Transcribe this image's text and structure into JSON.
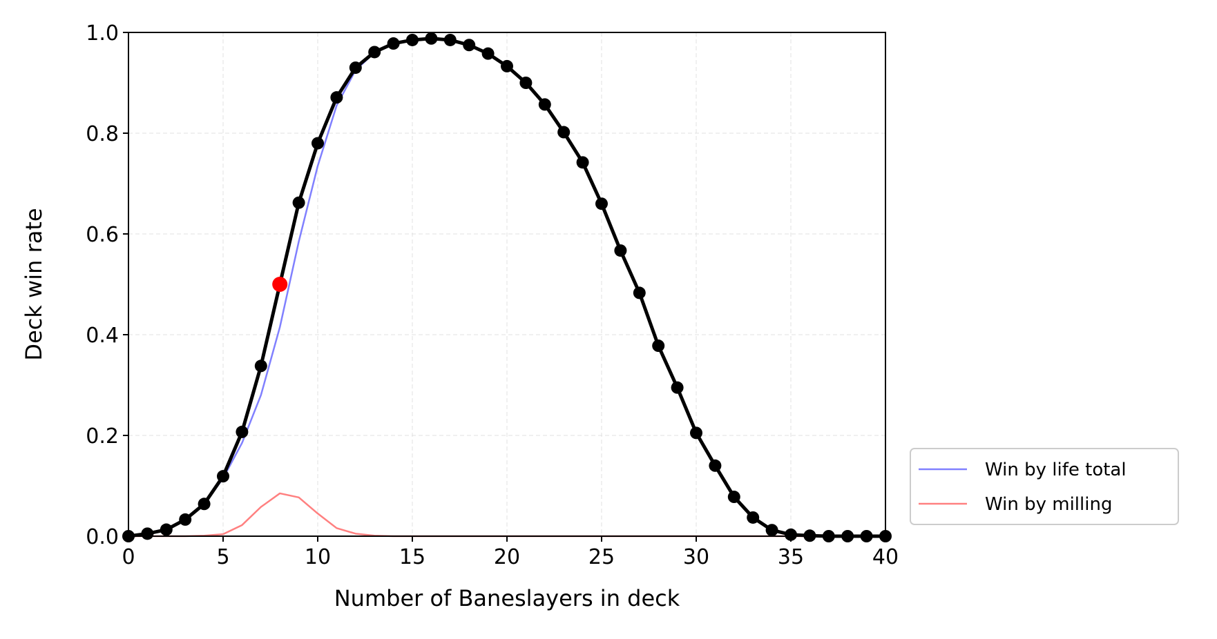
{
  "chart_data": {
    "type": "line",
    "title": "",
    "xlabel": "Number of Baneslayers in deck",
    "ylabel": "Deck win rate",
    "xlim": [
      0,
      40
    ],
    "ylim": [
      0,
      1
    ],
    "xticks": [
      "0",
      "5",
      "10",
      "15",
      "20",
      "25",
      "30",
      "35",
      "40"
    ],
    "yticks": [
      "0.0",
      "0.2",
      "0.4",
      "0.6",
      "0.8",
      "1.0"
    ],
    "grid": true,
    "legend_position": "outside-lower-right",
    "series": [
      {
        "name": "Win by life total",
        "color": "#8080ff",
        "x": [
          0,
          1,
          2,
          3,
          4,
          5,
          6,
          7,
          8,
          9,
          10,
          11,
          12,
          13,
          14,
          15,
          16,
          17,
          18,
          19,
          20,
          21,
          22,
          23,
          24,
          25,
          26,
          27,
          28,
          29,
          30,
          31,
          32,
          33,
          34,
          35,
          36,
          37,
          38,
          39,
          40
        ],
        "y": [
          0.0,
          0.005,
          0.013,
          0.033,
          0.063,
          0.115,
          0.185,
          0.28,
          0.415,
          0.585,
          0.735,
          0.855,
          0.925,
          0.96,
          0.978,
          0.985,
          0.988,
          0.985,
          0.975,
          0.958,
          0.933,
          0.9,
          0.857,
          0.802,
          0.742,
          0.66,
          0.567,
          0.483,
          0.378,
          0.295,
          0.205,
          0.14,
          0.078,
          0.037,
          0.012,
          0.003,
          0.001,
          0.0,
          0.0,
          0.0,
          0.0
        ]
      },
      {
        "name": "Win by milling",
        "color": "#ff8080",
        "x": [
          0,
          1,
          2,
          3,
          4,
          5,
          6,
          7,
          8,
          9,
          10,
          11,
          12,
          13,
          14,
          15,
          16,
          17,
          18,
          19,
          20,
          21,
          22,
          23,
          24,
          25,
          26,
          27,
          28,
          29,
          30,
          31,
          32,
          33,
          34,
          35,
          36,
          37,
          38,
          39,
          40
        ],
        "y": [
          0.0,
          0.0,
          0.0,
          0.0,
          0.001,
          0.004,
          0.022,
          0.058,
          0.085,
          0.077,
          0.045,
          0.016,
          0.005,
          0.001,
          0.0,
          0.0,
          0.0,
          0.0,
          0.0,
          0.0,
          0.0,
          0.0,
          0.0,
          0.0,
          0.0,
          0.0,
          0.0,
          0.0,
          0.0,
          0.0,
          0.0,
          0.0,
          0.0,
          0.0,
          0.0,
          0.0,
          0.0,
          0.0,
          0.0,
          0.0,
          0.0
        ]
      },
      {
        "color": "#000000",
        "markers": true,
        "x": [
          0,
          1,
          2,
          3,
          4,
          5,
          6,
          7,
          8,
          9,
          10,
          11,
          12,
          13,
          14,
          15,
          16,
          17,
          18,
          19,
          20,
          21,
          22,
          23,
          24,
          25,
          26,
          27,
          28,
          29,
          30,
          31,
          32,
          33,
          34,
          35,
          36,
          37,
          38,
          39,
          40
        ],
        "y": [
          0.0,
          0.005,
          0.013,
          0.033,
          0.064,
          0.119,
          0.207,
          0.338,
          0.5,
          0.662,
          0.78,
          0.871,
          0.93,
          0.961,
          0.978,
          0.985,
          0.988,
          0.985,
          0.975,
          0.958,
          0.933,
          0.9,
          0.857,
          0.802,
          0.742,
          0.66,
          0.567,
          0.483,
          0.378,
          0.295,
          0.205,
          0.14,
          0.078,
          0.037,
          0.012,
          0.003,
          0.001,
          0.0,
          0.0,
          0.0,
          0.0
        ]
      }
    ],
    "highlight_point": {
      "x": 8,
      "y": 0.5,
      "color": "#ff0000"
    }
  }
}
